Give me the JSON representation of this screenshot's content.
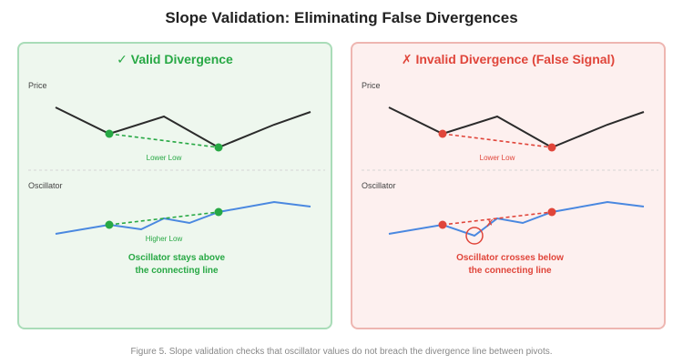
{
  "title": "Slope Validation: Eliminating False Divergences",
  "colors": {
    "valid": "#27a844",
    "invalid": "#e0453a",
    "price_line": "#2b2b2b",
    "oscillator_line": "#4a88e0",
    "label_gray": "#444444",
    "separator": "#d6d6d6"
  },
  "panels": [
    {
      "id": "valid",
      "heading_icon": "check-icon",
      "heading_symbol": "✓",
      "heading": "Valid Divergence",
      "price_label": "Price",
      "oscillator_label": "Oscillator",
      "price_pivot_label": "Lower Low",
      "oscillator_pivot_label": "Higher Low",
      "conclusion_line1": "Oscillator stays above",
      "conclusion_line2": "the connecting line",
      "price_series": [
        0.9,
        0.3,
        0.75,
        0.0,
        0.5,
        0.85
      ],
      "price_pivot_indices": [
        1,
        3
      ],
      "oscillator_series": [
        0.0,
        0.3,
        0.15,
        0.55,
        0.4,
        0.75,
        0.95,
        0.85
      ],
      "oscillator_pivot_indices": [
        2,
        5
      ],
      "breach": false
    },
    {
      "id": "invalid",
      "heading_icon": "cross-icon",
      "heading_symbol": "✗",
      "heading": "Invalid Divergence (False Signal)",
      "price_label": "Price",
      "oscillator_label": "Oscillator",
      "price_pivot_label": "Lower Low",
      "conclusion_line1": "Oscillator crosses below",
      "conclusion_line2": "the connecting line",
      "price_series": [
        0.9,
        0.3,
        0.75,
        0.0,
        0.5,
        0.85
      ],
      "price_pivot_indices": [
        1,
        3
      ],
      "oscillator_series": [
        0.0,
        0.3,
        -0.1,
        0.55,
        0.4,
        0.75,
        0.95,
        0.85
      ],
      "oscillator_pivot_indices": [
        2,
        5
      ],
      "breach": true
    }
  ],
  "caption": "Figure 5. Slope validation checks that oscillator values do not breach the divergence line between pivots."
}
